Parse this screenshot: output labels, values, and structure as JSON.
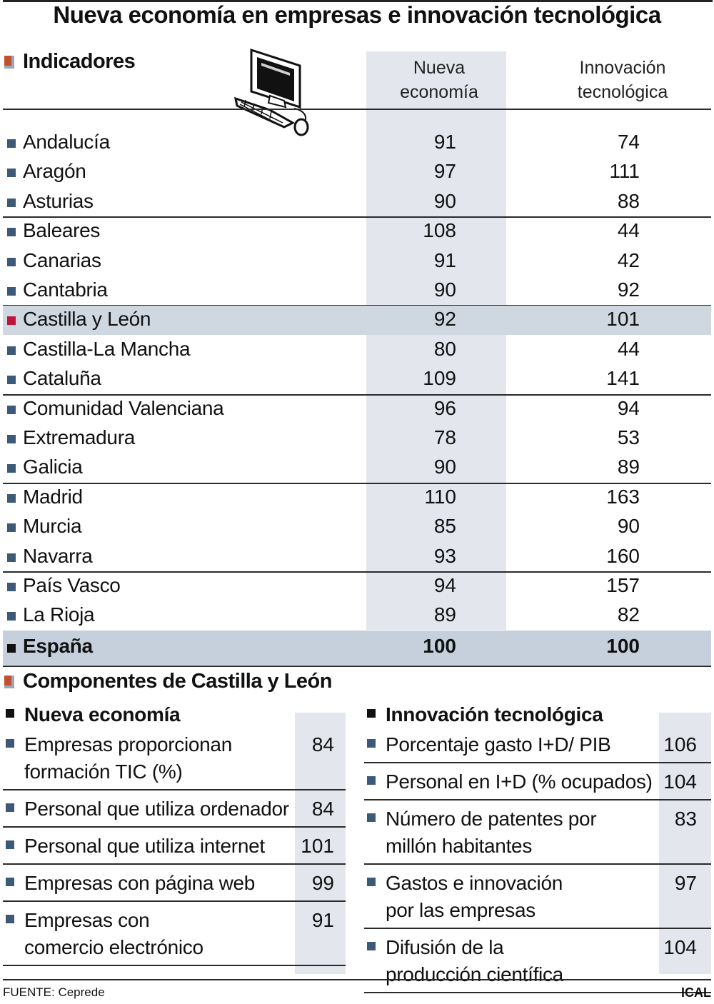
{
  "title": "Nueva economía en empresas e innovación tecnológica",
  "section1": {
    "heading": "Indicadores",
    "col1": [
      "Nueva",
      "economía"
    ],
    "col2": [
      "Innovación",
      "tecnológica"
    ]
  },
  "section2": {
    "heading": "Componentes de Castilla y León",
    "left_heading": "Nueva economía",
    "right_heading": "Innovación tecnológica"
  },
  "chart_data": [
    {
      "type": "table",
      "title": "Nueva economía en empresas e innovación tecnológica",
      "columns": [
        "Nueva economía",
        "Innovación tecnológica"
      ],
      "rows": [
        {
          "name": "Andalucía",
          "values": [
            91,
            74
          ]
        },
        {
          "name": "Aragón",
          "values": [
            97,
            111
          ]
        },
        {
          "name": "Asturias",
          "values": [
            90,
            88
          ]
        },
        {
          "name": "Baleares",
          "values": [
            108,
            44
          ]
        },
        {
          "name": "Canarias",
          "values": [
            91,
            42
          ]
        },
        {
          "name": "Cantabria",
          "values": [
            90,
            92
          ]
        },
        {
          "name": "Castilla y León",
          "values": [
            92,
            101
          ],
          "highlight": true
        },
        {
          "name": "Castilla-La Mancha",
          "values": [
            80,
            44
          ]
        },
        {
          "name": "Cataluña",
          "values": [
            109,
            141
          ]
        },
        {
          "name": "Comunidad Valenciana",
          "values": [
            96,
            94
          ]
        },
        {
          "name": "Extremadura",
          "values": [
            78,
            53
          ]
        },
        {
          "name": "Galicia",
          "values": [
            90,
            89
          ]
        },
        {
          "name": "Madrid",
          "values": [
            110,
            163
          ]
        },
        {
          "name": "Murcia",
          "values": [
            85,
            90
          ]
        },
        {
          "name": "Navarra",
          "values": [
            93,
            160
          ]
        },
        {
          "name": "País Vasco",
          "values": [
            94,
            157
          ]
        },
        {
          "name": "La Rioja",
          "values": [
            89,
            82
          ]
        },
        {
          "name": "España",
          "values": [
            100,
            100
          ],
          "total": true
        }
      ]
    },
    {
      "type": "table",
      "title": "Nueva economía",
      "rows": [
        {
          "lines": [
            "Empresas proporcionan",
            "formación TIC (%)"
          ],
          "value": 84
        },
        {
          "lines": [
            "Personal que utiliza ordenador"
          ],
          "value": 84
        },
        {
          "lines": [
            "Personal que utiliza internet"
          ],
          "value": 101
        },
        {
          "lines": [
            "Empresas con página web"
          ],
          "value": 99
        },
        {
          "lines": [
            "Empresas con",
            "comercio electrónico"
          ],
          "value": 91
        }
      ]
    },
    {
      "type": "table",
      "title": "Innovación tecnológica",
      "rows": [
        {
          "lines": [
            "Porcentaje gasto I+D/ PIB"
          ],
          "value": 106
        },
        {
          "lines": [
            "Personal en I+D (% ocupados)"
          ],
          "value": 104
        },
        {
          "lines": [
            "Número de patentes por",
            "millón habitantes"
          ],
          "value": 83
        },
        {
          "lines": [
            "Gastos e innovación",
            "por las empresas"
          ],
          "value": 97
        },
        {
          "lines": [
            "Difusión de la",
            "producción científica"
          ],
          "value": 104
        }
      ]
    }
  ],
  "footer": {
    "source": "FUENTE: Ceprede",
    "credit": "ICAL"
  },
  "icons": {
    "computer": "computer-icon",
    "section_marker": "section-marker-icon"
  },
  "colors": {
    "bullet": "#3c5a78",
    "highlight_bullet": "#c0143c",
    "column_shade": "#e3e7ed",
    "highlight_row": "#cfd7e0",
    "total_row": "#c5d0dc"
  }
}
